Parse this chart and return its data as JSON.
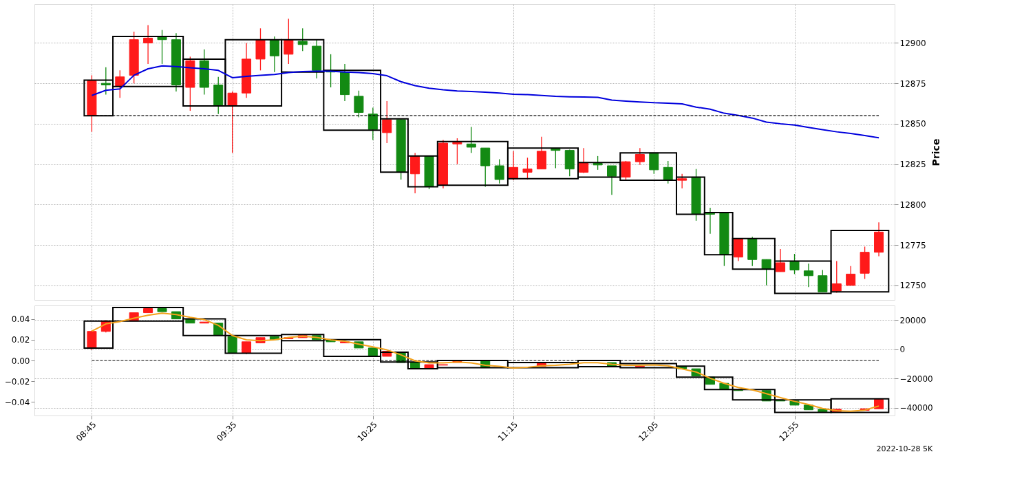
{
  "chart_data": [
    {
      "type": "candlestick",
      "ylabel": "Price",
      "xlim": [
        8.43,
        13.49
      ],
      "ylim": [
        12741,
        12924
      ],
      "xticks": [
        {
          "value": 8.75,
          "label": null
        },
        {
          "value": 9.5833,
          "label": null
        },
        {
          "value": 10.4167,
          "label": null
        },
        {
          "value": 11.25,
          "label": null
        },
        {
          "value": 12.0833,
          "label": null
        },
        {
          "value": 12.9167,
          "label": null
        }
      ],
      "yticks": [
        12750,
        12775,
        12800,
        12825,
        12850,
        12875,
        12900
      ],
      "grid": true,
      "tick_labels": "y",
      "x": [
        8.75,
        8.8333,
        8.9167,
        9,
        9.0833,
        9.1667,
        9.25,
        9.3333,
        9.4167,
        9.5,
        9.5833,
        9.6667,
        9.75,
        9.8333,
        9.9167,
        10,
        10.0833,
        10.1667,
        10.25,
        10.3333,
        10.4167,
        10.5,
        10.5833,
        10.6667,
        10.75,
        10.8333,
        10.9167,
        11,
        11.0833,
        11.1667,
        11.25,
        11.3333,
        11.4167,
        11.5,
        11.5833,
        11.6667,
        11.75,
        11.8333,
        11.9167,
        12,
        12.0833,
        12.1667,
        12.25,
        12.3333,
        12.4167,
        12.5,
        12.5833,
        12.6667,
        12.75,
        12.8333,
        12.9167,
        13,
        13.0833,
        13.1667,
        13.25,
        13.3333,
        13.4167
      ],
      "ohlc": [
        [
          12855,
          12880,
          12845,
          12876.5
        ],
        [
          12875,
          12885,
          12868,
          12874
        ],
        [
          12873,
          12883,
          12866,
          12879
        ],
        [
          12880,
          12907,
          12875,
          12902
        ],
        [
          12900,
          12911,
          12887,
          12903
        ],
        [
          12904,
          12908,
          12887,
          12902
        ],
        [
          12902,
          12906,
          12870,
          12874
        ],
        [
          12872.5,
          12891.5,
          12858,
          12889
        ],
        [
          12889,
          12896,
          12868,
          12872.5
        ],
        [
          12874,
          12879,
          12856,
          12861
        ],
        [
          12861,
          12870,
          12832,
          12869
        ],
        [
          12869,
          12900,
          12866,
          12890
        ],
        [
          12890,
          12909,
          12883,
          12902
        ],
        [
          12902,
          12904,
          12882,
          12892
        ],
        [
          12893,
          12915,
          12887,
          12902
        ],
        [
          12901,
          12909,
          12895,
          12899
        ],
        [
          12898,
          12902,
          12878,
          12883
        ],
        [
          12883,
          12893,
          12872.5,
          12882
        ],
        [
          12882,
          12887,
          12864,
          12868
        ],
        [
          12867,
          12870.5,
          12854,
          12857
        ],
        [
          12856,
          12860,
          12840,
          12846.5
        ],
        [
          12844.5,
          12864,
          12838,
          12852.5
        ],
        [
          12852.5,
          12853,
          12815.5,
          12820
        ],
        [
          12819,
          12832,
          12807,
          12830
        ],
        [
          12830,
          12830,
          12809.5,
          12811
        ],
        [
          12812,
          12840,
          12810,
          12838
        ],
        [
          12837.5,
          12841,
          12825,
          12838.5
        ],
        [
          12837.5,
          12848,
          12832,
          12835.5
        ],
        [
          12835,
          12835,
          12811,
          12824
        ],
        [
          12824,
          12828,
          12813,
          12815.5
        ],
        [
          12816,
          12833,
          12815,
          12823
        ],
        [
          12820,
          12829,
          12815.5,
          12822
        ],
        [
          12822,
          12842,
          12822,
          12833
        ],
        [
          12834.5,
          12835,
          12822.5,
          12833.5
        ],
        [
          12833.5,
          12834,
          12817.5,
          12822
        ],
        [
          12820,
          12835,
          12819.5,
          12826
        ],
        [
          12825.5,
          12830,
          12821.5,
          12824.5
        ],
        [
          12824,
          12824,
          12806,
          12817.5
        ],
        [
          12817,
          12827,
          12815.5,
          12826.5
        ],
        [
          12826.5,
          12835,
          12824.5,
          12831
        ],
        [
          12832,
          12832,
          12819,
          12821.5
        ],
        [
          12823,
          12827,
          12813,
          12815.5
        ],
        [
          12815,
          12819,
          12810,
          12816
        ],
        [
          12817,
          12822,
          12790,
          12794
        ],
        [
          12794.5,
          12798,
          12782,
          12794
        ],
        [
          12795,
          12795,
          12762,
          12769
        ],
        [
          12767.5,
          12779,
          12765,
          12779
        ],
        [
          12779,
          12780,
          12762,
          12766
        ],
        [
          12766,
          12766,
          12750,
          12760
        ],
        [
          12758.5,
          12772.5,
          12758.5,
          12764
        ],
        [
          12765,
          12769.5,
          12757,
          12759.5
        ],
        [
          12759,
          12763.5,
          12749,
          12756
        ],
        [
          12756,
          12759.5,
          12746,
          12746
        ],
        [
          12746.5,
          12765,
          12745.5,
          12751
        ],
        [
          12750,
          12762,
          12750,
          12757
        ],
        [
          12757.5,
          12774,
          12754,
          12770.5
        ],
        [
          12770.5,
          12789,
          12768,
          12783
        ]
      ],
      "colors": [
        "#ff1a1a",
        "#138a13",
        "#ff1a1a",
        "#ff1a1a",
        "#ff1a1a",
        "#138a13",
        "#138a13",
        "#ff1a1a",
        "#138a13",
        "#138a13",
        "#ff1a1a",
        "#ff1a1a",
        "#ff1a1a",
        "#138a13",
        "#ff1a1a",
        "#138a13",
        "#138a13",
        "#138a13",
        "#138a13",
        "#138a13",
        "#138a13",
        "#ff1a1a",
        "#138a13",
        "#ff1a1a",
        "#138a13",
        "#ff1a1a",
        "#ff1a1a",
        "#138a13",
        "#138a13",
        "#138a13",
        "#ff1a1a",
        "#ff1a1a",
        "#ff1a1a",
        "#138a13",
        "#138a13",
        "#ff1a1a",
        "#138a13",
        "#138a13",
        "#ff1a1a",
        "#ff1a1a",
        "#138a13",
        "#138a13",
        "#ff1a1a",
        "#138a13",
        "#138a13",
        "#138a13",
        "#ff1a1a",
        "#138a13",
        "#138a13",
        "#ff1a1a",
        "#138a13",
        "#138a13",
        "#138a13",
        "#ff1a1a",
        "#ff1a1a",
        "#ff1a1a",
        "#ff1a1a"
      ],
      "series": [
        {
          "type": "histogram",
          "color": "#000000",
          "bins": [
            8.705,
            8.875,
            9.2917,
            9.5417,
            9.875,
            10.125,
            10.4625,
            10.625,
            10.8,
            11.2167,
            11.6333,
            11.8833,
            12.2167,
            12.3833,
            12.55,
            12.8,
            13.1333,
            13.475
          ],
          "base": [
            12855,
            12873,
            12861,
            12861,
            12882,
            12846,
            12820,
            12811,
            12812,
            12816,
            12817,
            12815,
            12794,
            12769,
            12760,
            12745,
            12746
          ],
          "values": [
            22,
            31,
            29,
            41,
            20,
            37,
            33,
            19,
            27,
            19,
            9,
            17,
            23,
            26,
            19,
            20,
            38
          ]
        },
        {
          "type": "line",
          "color": "#0000dd",
          "values": [
            12867.5,
            12870.7,
            12871.5,
            12880,
            12884,
            12885.8,
            12885.4,
            12884.6,
            12884,
            12883,
            12878.5,
            12879.3,
            12880,
            12880.5,
            12881.7,
            12882.3,
            12882.5,
            12882.5,
            12882,
            12881.7,
            12881,
            12879.7,
            12876,
            12873.6,
            12872,
            12871,
            12870.3,
            12870,
            12869.5,
            12869,
            12868.3,
            12868,
            12867.5,
            12867,
            12866.7,
            12866.5,
            12866.3,
            12864.6,
            12864,
            12863.5,
            12863,
            12862.7,
            12862.3,
            12860.3,
            12859,
            12856.5,
            12855.2,
            12853.5,
            12851,
            12850,
            12849.2,
            12847.7,
            12846.3,
            12845,
            12844,
            12842.7,
            12841.3
          ]
        }
      ],
      "ref_lines": [
        {
          "axis": "y",
          "value": 12855,
          "color": "#000000",
          "line_style": "dashed"
        }
      ]
    },
    {
      "type": "candlestick",
      "xlim": [
        8.43,
        13.49
      ],
      "ylim": [
        -0.053,
        0.053
      ],
      "y2lim": [
        -45400,
        29900
      ],
      "xticks": [
        {
          "value": 8.75,
          "label": "08:45"
        },
        {
          "value": 9.5833,
          "label": "09:35"
        },
        {
          "value": 10.4167,
          "label": "10:25"
        },
        {
          "value": 11.25,
          "label": "11:15"
        },
        {
          "value": 12.0833,
          "label": "12:05"
        },
        {
          "value": 12.9167,
          "label": "12:55"
        }
      ],
      "yticks": [
        {
          "value": -0.04,
          "label": "−0.04"
        },
        {
          "value": -0.02,
          "label": "−0.02"
        },
        {
          "value": 0,
          "label": "0.00"
        },
        0.02,
        0.04
      ],
      "y2ticks": [
        {
          "value": -40000,
          "label": "−40000"
        },
        {
          "value": -20000,
          "label": "−20000"
        },
        0,
        20000
      ],
      "grid": true,
      "x": [
        8.75,
        8.8333,
        8.9167,
        9,
        9.0833,
        9.1667,
        9.25,
        9.3333,
        9.4167,
        9.5,
        9.5833,
        9.6667,
        9.75,
        9.8333,
        9.9167,
        10,
        10.0833,
        10.1667,
        10.25,
        10.3333,
        10.4167,
        10.5,
        10.5833,
        10.6667,
        10.75,
        10.8333,
        10.9167,
        11,
        11.0833,
        11.1667,
        11.25,
        11.3333,
        11.4167,
        11.5,
        11.5833,
        11.6667,
        11.75,
        11.8333,
        11.9167,
        12,
        12.0833,
        12.1667,
        12.25,
        12.3333,
        12.4167,
        12.5,
        12.5833,
        12.6667,
        12.75,
        12.8333,
        12.9167,
        13,
        13.0833,
        13.1667,
        13.25,
        13.3333,
        13.4167
      ],
      "ohlc": [
        [
          0.012,
          0.029,
          0.01,
          0.028
        ],
        [
          0.028,
          0.039,
          0.027,
          0.038
        ],
        null,
        [
          0.038,
          0.046,
          0.038,
          0.046
        ],
        [
          0.046,
          0.05,
          0.046,
          0.05
        ],
        [
          0.05,
          0.05,
          0.047,
          0.047
        ],
        [
          0.047,
          0.047,
          0.04,
          0.04
        ],
        [
          0.04,
          0.04,
          0.036,
          0.036
        ],
        [
          0.036,
          0.037,
          0.036,
          0.037
        ],
        [
          0.036,
          0.036,
          0.024,
          0.024
        ],
        [
          0.023,
          0.023,
          0.007,
          0.007
        ],
        [
          0.007,
          0.018,
          0.006,
          0.018
        ],
        [
          0.017,
          0.022,
          0.017,
          0.022
        ],
        [
          0.023,
          0.023,
          0.02,
          0.02
        ],
        [
          0.021,
          0.022,
          0.021,
          0.022
        ],
        [
          0.022,
          0.024,
          0.022,
          0.024
        ],
        [
          0.024,
          0.024,
          0.02,
          0.02
        ],
        [
          0.02,
          0.02,
          0.018,
          0.018
        ],
        [
          0.017,
          0.018,
          0.017,
          0.018
        ],
        [
          0.018,
          0.018,
          0.012,
          0.012
        ],
        [
          0.012,
          0.012,
          0.004,
          0.004
        ],
        [
          0.004,
          0.009,
          0.004,
          0.009
        ],
        [
          0.008,
          0.008,
          -0.002,
          -0.002
        ],
        [
          -0.002,
          -0.002,
          -0.008,
          -0.008
        ],
        [
          -0.008,
          -0.004,
          -0.008,
          -0.004
        ],
        [
          -0.0045,
          -0.004,
          -0.0045,
          -0.004
        ],
        [
          -0.002,
          -0.001,
          -0.002,
          -0.001
        ],
        null,
        [
          0.0,
          0.0,
          -0.007,
          -0.007
        ],
        null,
        null,
        null,
        [
          -0.0055,
          -0.003,
          -0.0055,
          -0.003
        ],
        null,
        null,
        null,
        null,
        [
          -0.002,
          -0.002,
          -0.006,
          -0.006
        ],
        null,
        [
          -0.006,
          -0.0055,
          -0.006,
          -0.0055
        ],
        null,
        null,
        [
          -0.006,
          -0.006,
          -0.008,
          -0.008
        ],
        [
          -0.008,
          -0.008,
          -0.015,
          -0.015
        ],
        [
          -0.016,
          -0.016,
          -0.023,
          -0.023
        ],
        [
          -0.022,
          -0.022,
          -0.028,
          -0.028
        ],
        [
          -0.028,
          -0.028,
          -0.029,
          -0.029
        ],
        null,
        [
          -0.029,
          -0.029,
          -0.039,
          -0.039
        ],
        [
          -0.0385,
          -0.0385,
          -0.039,
          -0.039
        ],
        [
          -0.039,
          -0.039,
          -0.043,
          -0.043
        ],
        [
          -0.043,
          -0.043,
          -0.0475,
          -0.0475
        ],
        [
          -0.047,
          -0.047,
          -0.0495,
          -0.0495
        ],
        [
          -0.0495,
          -0.047,
          -0.0495,
          -0.047
        ],
        null,
        [
          -0.048,
          -0.0465,
          -0.048,
          -0.0465
        ],
        [
          -0.0465,
          -0.0375,
          -0.0465,
          -0.0375
        ]
      ],
      "colors": [
        "#ff1a1a",
        "#ff1a1a",
        null,
        "#ff1a1a",
        "#ff1a1a",
        "#138a13",
        "#138a13",
        "#138a13",
        "#ff1a1a",
        "#138a13",
        "#138a13",
        "#ff1a1a",
        "#ff1a1a",
        "#138a13",
        "#ff1a1a",
        "#ff1a1a",
        "#138a13",
        "#138a13",
        "#ff1a1a",
        "#138a13",
        "#138a13",
        "#ff1a1a",
        "#138a13",
        "#138a13",
        "#ff1a1a",
        "#ff1a1a",
        "#ff1a1a",
        null,
        "#138a13",
        null,
        null,
        null,
        "#ff1a1a",
        null,
        null,
        null,
        null,
        "#138a13",
        null,
        "#ff1a1a",
        null,
        null,
        "#138a13",
        "#138a13",
        "#138a13",
        "#138a13",
        "#138a13",
        null,
        "#138a13",
        "#138a13",
        "#138a13",
        "#138a13",
        "#138a13",
        "#ff1a1a",
        null,
        "#ff1a1a",
        "#ff1a1a"
      ],
      "series": [
        {
          "type": "histogram",
          "color": "#000000",
          "bins": [
            8.705,
            8.875,
            9.2917,
            9.5417,
            9.875,
            10.125,
            10.4625,
            10.625,
            10.8,
            11.2167,
            11.6333,
            11.8833,
            12.2167,
            12.3833,
            12.55,
            12.8,
            13.1333,
            13.475
          ],
          "base": [
            0.012,
            0.038,
            0.024,
            0.007,
            0.019,
            0.004,
            -0.0015,
            -0.008,
            -0.007,
            -0.007,
            -0.006,
            -0.007,
            -0.016,
            -0.028,
            -0.038,
            -0.05,
            -0.05
          ],
          "values": [
            0.026,
            0.013,
            0.016,
            0.017,
            0.006,
            0.016,
            0.0095,
            0.0065,
            0.007,
            0.005,
            0.006,
            0.004,
            0.0105,
            0.012,
            0.01,
            0.012,
            0.013
          ]
        },
        {
          "type": "line",
          "color": "#f4a21c",
          "axis": "y2",
          "values": [
            12300,
            17300,
            18800,
            21200,
            23200,
            24600,
            23700,
            21800,
            20200,
            16300,
            9300,
            6400,
            5800,
            6400,
            8000,
            8800,
            8000,
            6400,
            5400,
            3400,
            1500,
            -500,
            -3900,
            -8000,
            -9400,
            -9400,
            -8800,
            -9400,
            -11000,
            -11800,
            -12900,
            -12400,
            -11400,
            -11000,
            -10300,
            -9300,
            -9300,
            -10300,
            -11000,
            -11000,
            -10800,
            -11400,
            -13500,
            -15600,
            -19900,
            -23400,
            -26200,
            -27900,
            -30500,
            -33200,
            -35700,
            -37900,
            -40600,
            -42100,
            -42500,
            -41700,
            -38900
          ]
        }
      ],
      "ref_lines": [
        {
          "axis": "y",
          "value": 0,
          "color": "#000000",
          "line_style": "dashed"
        }
      ],
      "annotations": [
        "2022-10-28 5K"
      ]
    }
  ]
}
